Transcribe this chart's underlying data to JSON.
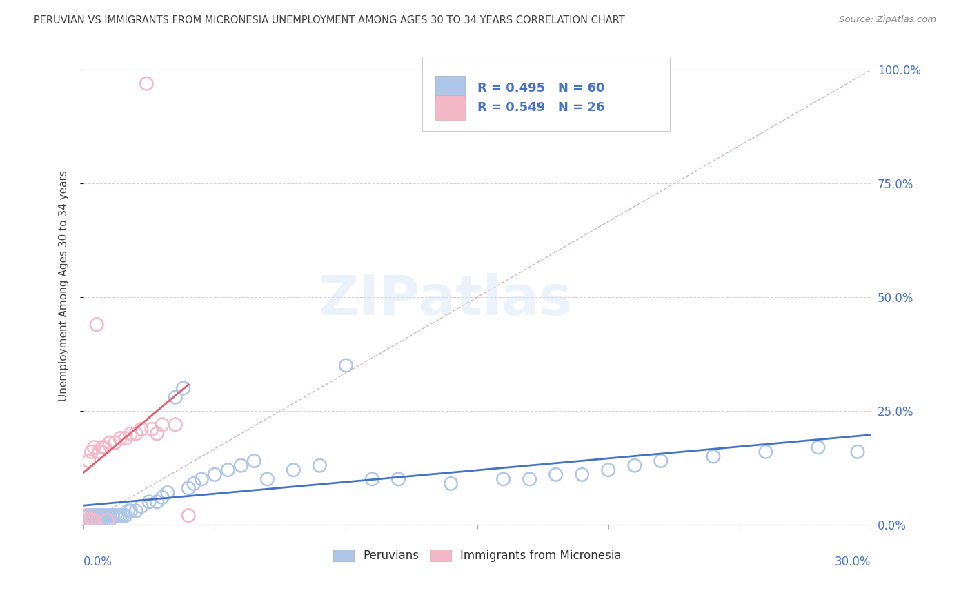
{
  "title": "PERUVIAN VS IMMIGRANTS FROM MICRONESIA UNEMPLOYMENT AMONG AGES 30 TO 34 YEARS CORRELATION CHART",
  "source": "Source: ZipAtlas.com",
  "ylabel": "Unemployment Among Ages 30 to 34 years",
  "legend1_r": "0.495",
  "legend1_n": "60",
  "legend2_r": "0.549",
  "legend2_n": "26",
  "peruvian_color": "#aec6e8",
  "micronesia_color": "#f4b8c8",
  "peruvian_line_color": "#4472c4",
  "micronesia_line_color": "#e06070",
  "diagonal_color": "#c8a8b0",
  "grid_color": "#d0d0d0",
  "title_color": "#404040",
  "axis_label_color": "#4472c4",
  "source_color": "#888888",
  "peruvians_label": "Peruvians",
  "micronesia_label": "Immigrants from Micronesia",
  "watermark": "ZIPatlas",
  "xlim": [
    0.0,
    0.3
  ],
  "ylim": [
    0.0,
    1.05
  ],
  "right_ytick_vals": [
    0.0,
    0.25,
    0.5,
    0.75,
    1.0
  ],
  "right_ytick_labels": [
    "0.0%",
    "25.0%",
    "50.0%",
    "75.0%",
    "100.0%"
  ],
  "peru_x": [
    0.001,
    0.002,
    0.002,
    0.003,
    0.003,
    0.004,
    0.004,
    0.005,
    0.005,
    0.006,
    0.006,
    0.007,
    0.007,
    0.008,
    0.008,
    0.009,
    0.009,
    0.01,
    0.01,
    0.011,
    0.012,
    0.013,
    0.014,
    0.015,
    0.016,
    0.017,
    0.018,
    0.02,
    0.022,
    0.025,
    0.028,
    0.03,
    0.032,
    0.035,
    0.038,
    0.04,
    0.042,
    0.045,
    0.05,
    0.055,
    0.06,
    0.065,
    0.07,
    0.08,
    0.09,
    0.1,
    0.11,
    0.12,
    0.14,
    0.16,
    0.17,
    0.18,
    0.19,
    0.2,
    0.21,
    0.22,
    0.24,
    0.26,
    0.28,
    0.295
  ],
  "peru_y": [
    0.01,
    0.01,
    0.02,
    0.01,
    0.02,
    0.01,
    0.02,
    0.01,
    0.02,
    0.01,
    0.02,
    0.01,
    0.02,
    0.01,
    0.02,
    0.01,
    0.02,
    0.01,
    0.02,
    0.02,
    0.02,
    0.02,
    0.02,
    0.02,
    0.02,
    0.03,
    0.03,
    0.03,
    0.04,
    0.05,
    0.05,
    0.06,
    0.07,
    0.28,
    0.3,
    0.08,
    0.09,
    0.1,
    0.11,
    0.12,
    0.13,
    0.14,
    0.1,
    0.12,
    0.13,
    0.35,
    0.1,
    0.1,
    0.09,
    0.1,
    0.1,
    0.11,
    0.11,
    0.12,
    0.13,
    0.14,
    0.15,
    0.16,
    0.17,
    0.16
  ],
  "micro_x": [
    0.001,
    0.001,
    0.002,
    0.002,
    0.003,
    0.003,
    0.004,
    0.004,
    0.005,
    0.006,
    0.007,
    0.008,
    0.009,
    0.01,
    0.012,
    0.014,
    0.016,
    0.018,
    0.02,
    0.022,
    0.024,
    0.026,
    0.028,
    0.03,
    0.035,
    0.04
  ],
  "micro_y": [
    0.01,
    0.02,
    0.01,
    0.14,
    0.01,
    0.16,
    0.01,
    0.17,
    0.44,
    0.16,
    0.17,
    0.17,
    0.01,
    0.18,
    0.18,
    0.19,
    0.19,
    0.2,
    0.2,
    0.21,
    0.97,
    0.21,
    0.2,
    0.22,
    0.22,
    0.02
  ]
}
